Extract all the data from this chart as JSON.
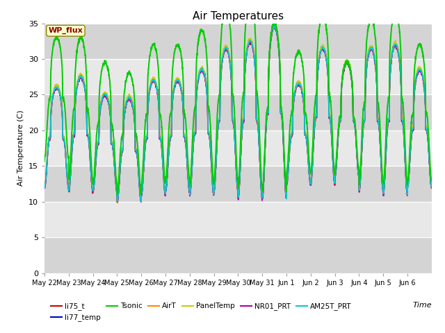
{
  "title": "Air Temperatures",
  "xlabel": "Time",
  "ylabel": "Air Temperature (C)",
  "ylim": [
    0,
    35
  ],
  "yticks": [
    0,
    5,
    10,
    15,
    20,
    25,
    30,
    35
  ],
  "date_labels": [
    "May 22",
    "May 23",
    "May 24",
    "May 25",
    "May 26",
    "May 27",
    "May 28",
    "May 29",
    "May 30",
    "May 31",
    "Jun 1",
    "Jun 2",
    "Jun 3",
    "Jun 4",
    "Jun 5",
    "Jun 6"
  ],
  "series_colors": {
    "li75_t": "#cc0000",
    "li77_temp": "#0000cc",
    "Tsonic": "#00cc00",
    "AirT": "#ff8800",
    "PanelTemp": "#cccc00",
    "NR01_PRT": "#aa00aa",
    "AM25T_PRT": "#00cccc"
  },
  "annotation_text": "WP_flux",
  "annotation_bg": "#ffffcc",
  "annotation_border": "#888800",
  "annotation_text_color": "#880000",
  "bg_band_dark": "#d8d8d8",
  "bg_band_light": "#e8e8e8",
  "bg_color_outer": "#ffffff",
  "n_days": 16,
  "pts_per_day": 144,
  "base_min": 11.5,
  "base_max_vals": [
    26.0,
    27.5,
    25.0,
    24.5,
    27.0,
    27.0,
    28.5,
    31.5,
    32.5,
    34.5,
    26.5,
    31.5,
    29.5,
    31.5,
    32.0,
    28.5
  ],
  "base_min_vals": [
    12.0,
    11.5,
    11.5,
    10.0,
    11.0,
    11.5,
    11.0,
    11.5,
    10.5,
    10.5,
    12.5,
    12.5,
    13.5,
    11.5,
    11.0,
    12.0
  ],
  "tsonic_extra_max": [
    7.0,
    5.5,
    4.5,
    3.5,
    5.0,
    5.0,
    5.5,
    5.5,
    6.0,
    0.5,
    4.5,
    4.5,
    0.0,
    4.0,
    4.5,
    3.5
  ],
  "tsonic_extra_min": [
    4.0,
    1.5,
    1.0,
    1.0,
    1.5,
    1.5,
    1.5,
    1.5,
    1.5,
    1.0,
    1.5,
    1.5,
    1.0,
    1.0,
    1.5,
    1.0
  ],
  "peak_sharpness": 3.0,
  "figsize": [
    6.4,
    4.8
  ],
  "dpi": 100
}
